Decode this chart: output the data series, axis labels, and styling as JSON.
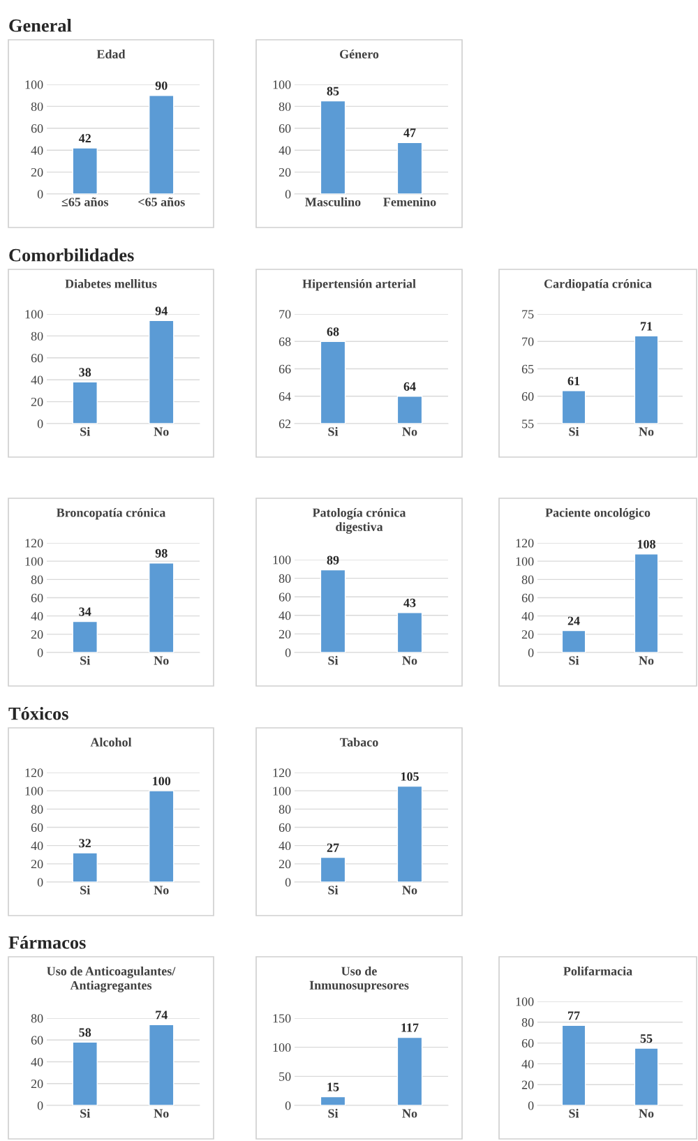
{
  "chart_data": [
    {
      "type": "bar",
      "title": "Edad",
      "annotations": [
        "General"
      ],
      "categories": [
        "≤65 años",
        "<65 años"
      ],
      "values": [
        42,
        90
      ],
      "color": "#5b9bd5",
      "ylim": [
        0,
        100
      ],
      "yticks": [
        0,
        20,
        40,
        60,
        80,
        100
      ],
      "grid": "y",
      "data_labels": true
    },
    {
      "type": "bar",
      "title": "Género",
      "categories": [
        "Masculino",
        "Femenino"
      ],
      "values": [
        85,
        47
      ],
      "color": "#5b9bd5",
      "ylim": [
        0,
        100
      ],
      "yticks": [
        0,
        20,
        40,
        60,
        80,
        100
      ],
      "grid": "y",
      "data_labels": true
    },
    {
      "type": "bar",
      "title": "Diabetes mellitus",
      "annotations": [
        "Comorbilidades"
      ],
      "categories": [
        "Si",
        "No"
      ],
      "values": [
        38,
        94
      ],
      "color": "#5b9bd5",
      "ylim": [
        0,
        100
      ],
      "yticks": [
        0,
        20,
        40,
        60,
        80,
        100
      ],
      "grid": "y",
      "data_labels": true
    },
    {
      "type": "bar",
      "title": "Hipertensión arterial",
      "categories": [
        "Si",
        "No"
      ],
      "values": [
        68,
        64
      ],
      "color": "#5b9bd5",
      "ylim": [
        62,
        70
      ],
      "yticks": [
        62,
        64,
        66,
        68,
        70
      ],
      "grid": "y",
      "data_labels": true
    },
    {
      "type": "bar",
      "title": "Cardiopatía crónica",
      "categories": [
        "Si",
        "No"
      ],
      "values": [
        61,
        71
      ],
      "color": "#5b9bd5",
      "ylim": [
        55,
        75
      ],
      "yticks": [
        55,
        60,
        65,
        70,
        75
      ],
      "grid": "y",
      "data_labels": true
    },
    {
      "type": "bar",
      "title": "Broncopatía crónica",
      "categories": [
        "Si",
        "No"
      ],
      "values": [
        34,
        98
      ],
      "color": "#5b9bd5",
      "ylim": [
        0,
        120
      ],
      "yticks": [
        0,
        20,
        40,
        60,
        80,
        100,
        120
      ],
      "grid": "y",
      "data_labels": true
    },
    {
      "type": "bar",
      "title": "Patología crónica\ndigestiva",
      "categories": [
        "Si",
        "No"
      ],
      "values": [
        89,
        43
      ],
      "color": "#5b9bd5",
      "ylim": [
        0,
        100
      ],
      "yticks": [
        0,
        20,
        40,
        60,
        80,
        100
      ],
      "grid": "y",
      "data_labels": true
    },
    {
      "type": "bar",
      "title": "Paciente oncológico",
      "categories": [
        "Si",
        "No"
      ],
      "values": [
        24,
        108
      ],
      "color": "#5b9bd5",
      "ylim": [
        0,
        120
      ],
      "yticks": [
        0,
        20,
        40,
        60,
        80,
        100,
        120
      ],
      "grid": "y",
      "data_labels": true
    },
    {
      "type": "bar",
      "title": "Alcohol",
      "annotations": [
        "Tóxicos"
      ],
      "categories": [
        "Si",
        "No"
      ],
      "values": [
        32,
        100
      ],
      "color": "#5b9bd5",
      "ylim": [
        0,
        120
      ],
      "yticks": [
        0,
        20,
        40,
        60,
        80,
        100,
        120
      ],
      "grid": "y",
      "data_labels": true
    },
    {
      "type": "bar",
      "title": "Tabaco",
      "categories": [
        "Si",
        "No"
      ],
      "values": [
        27,
        105
      ],
      "color": "#5b9bd5",
      "ylim": [
        0,
        120
      ],
      "yticks": [
        0,
        20,
        40,
        60,
        80,
        100,
        120
      ],
      "grid": "y",
      "data_labels": true
    },
    {
      "type": "bar",
      "title": "Uso de Anticoagulantes/\nAntiagregantes",
      "annotations": [
        "Fármacos"
      ],
      "categories": [
        "Si",
        "No"
      ],
      "values": [
        58,
        74
      ],
      "color": "#5b9bd5",
      "ylim": [
        0,
        80
      ],
      "yticks": [
        0,
        20,
        40,
        60,
        80
      ],
      "grid": "y",
      "data_labels": true
    },
    {
      "type": "bar",
      "title": "Uso de\nInmunosupresores",
      "categories": [
        "Si",
        "No"
      ],
      "values": [
        15,
        117
      ],
      "color": "#5b9bd5",
      "ylim": [
        0,
        150
      ],
      "yticks": [
        0,
        50,
        100,
        150
      ],
      "grid": "y",
      "data_labels": true
    },
    {
      "type": "bar",
      "title": "Polifarmacia",
      "categories": [
        "Si",
        "No"
      ],
      "values": [
        77,
        55
      ],
      "color": "#5b9bd5",
      "ylim": [
        0,
        100
      ],
      "yticks": [
        0,
        20,
        40,
        60,
        80,
        100
      ],
      "grid": "y",
      "data_labels": true
    }
  ]
}
